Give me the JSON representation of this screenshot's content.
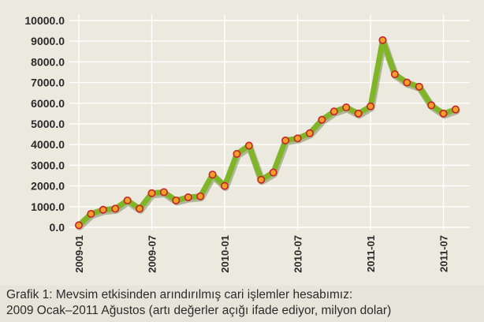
{
  "caption": {
    "line1": "Grafik 1: Mevsim etkisinden arındırılmış cari işlemler hesabımız:",
    "line2": "2009 Ocak–2011 Ağustos (artı değerler açığı ifade ediyor, milyon dolar)"
  },
  "colors": {
    "line": "#7fb526",
    "line_shadow": "#3c5a10",
    "marker_fill": "#f0a028",
    "marker_stroke": "#c8202a",
    "grid": "#ffffff",
    "background": "#ece9df"
  },
  "chart_data": {
    "type": "line",
    "title": "",
    "xlabel": "",
    "ylabel": "",
    "ylim": [
      0,
      10000
    ],
    "y_ticks": [
      "0.0",
      "1000.0",
      "2000.0",
      "3000.0",
      "4000.0",
      "5000.0",
      "6000.0",
      "7000.0",
      "8000.0",
      "9000.0",
      "10000.0"
    ],
    "x_tick_labels": [
      "2009-01",
      "2009-07",
      "2010-01",
      "2010-07",
      "2011-01",
      "2011-07"
    ],
    "x_tick_indices": [
      0,
      6,
      12,
      18,
      24,
      30
    ],
    "grid": true,
    "categories": [
      "2009-01",
      "2009-02",
      "2009-03",
      "2009-04",
      "2009-05",
      "2009-06",
      "2009-07",
      "2009-08",
      "2009-09",
      "2009-10",
      "2009-11",
      "2009-12",
      "2010-01",
      "2010-02",
      "2010-03",
      "2010-04",
      "2010-05",
      "2010-06",
      "2010-07",
      "2010-08",
      "2010-09",
      "2010-10",
      "2010-11",
      "2010-12",
      "2011-01",
      "2011-02",
      "2011-03",
      "2011-04",
      "2011-05",
      "2011-06",
      "2011-07",
      "2011-08"
    ],
    "series": [
      {
        "values": [
          100,
          650,
          850,
          900,
          1300,
          900,
          1650,
          1700,
          1300,
          1450,
          1500,
          2550,
          2000,
          3550,
          3950,
          2300,
          2650,
          4200,
          4300,
          4550,
          5200,
          5600,
          5800,
          5500,
          5850,
          9050,
          7400,
          7000,
          6800,
          5900,
          5500,
          5700
        ]
      }
    ]
  }
}
